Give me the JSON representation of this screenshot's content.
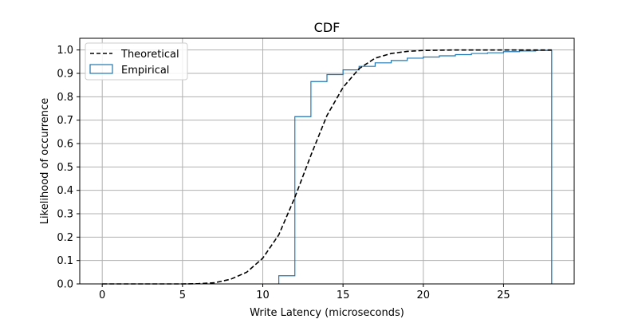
{
  "chart_data": {
    "type": "line",
    "title": "CDF",
    "xlabel": "Write Latency (microseconds)",
    "ylabel": "Likelihood of occurrence",
    "xlim": [
      -1.4,
      29.4
    ],
    "ylim": [
      0.0,
      1.05
    ],
    "xticks": [
      0,
      5,
      10,
      15,
      20,
      25
    ],
    "yticks": [
      0.0,
      0.1,
      0.2,
      0.3,
      0.4,
      0.5,
      0.6,
      0.7,
      0.8,
      0.9,
      1.0
    ],
    "grid": true,
    "legend_position": "top-left",
    "series": [
      {
        "name": "Theoretical",
        "style": "dashed",
        "color": "#000000",
        "x": [
          0,
          1,
          2,
          3,
          4,
          5,
          6,
          7,
          8,
          9,
          10,
          11,
          12,
          13,
          14,
          15,
          16,
          17,
          18,
          19,
          20,
          21,
          22,
          23,
          24,
          25,
          26,
          27,
          28
        ],
        "y": [
          0.0,
          0.0,
          0.0,
          0.0,
          0.0,
          0.0,
          0.001,
          0.005,
          0.02,
          0.05,
          0.11,
          0.21,
          0.37,
          0.55,
          0.72,
          0.84,
          0.92,
          0.965,
          0.985,
          0.994,
          0.998,
          0.999,
          1.0,
          1.0,
          1.0,
          1.0,
          1.0,
          1.0,
          1.0
        ]
      },
      {
        "name": "Empirical",
        "style": "step",
        "color": "#1f77b4",
        "edges": [
          11,
          12,
          13,
          14,
          15,
          16,
          17,
          18,
          19,
          20,
          21,
          22,
          23,
          24,
          25,
          26,
          27,
          28
        ],
        "values": [
          0.035,
          0.715,
          0.865,
          0.895,
          0.915,
          0.93,
          0.945,
          0.955,
          0.965,
          0.97,
          0.975,
          0.98,
          0.985,
          0.988,
          0.993,
          0.996,
          0.998
        ]
      }
    ]
  }
}
